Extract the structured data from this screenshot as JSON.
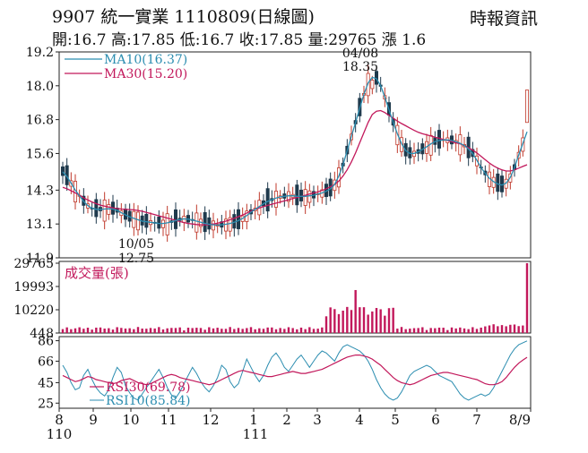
{
  "header": {
    "title": "9907 統一實業 1110809(日線圖)",
    "source": "時報資訊",
    "quote": "開:16.7 高:17.85 低:16.7 收:17.85 量:29765 漲 1.6"
  },
  "colors": {
    "up": "#c0392b",
    "down": "#1f3a4d",
    "ma10": "#2b8db0",
    "ma30": "#c2185b",
    "volume": "#c2185b",
    "rsi10": "#2b8db0",
    "rsi30": "#c2185b"
  },
  "chart_data": [
    {
      "type": "candlestick",
      "panel": "price",
      "ylim": [
        11.9,
        19.2
      ],
      "y_ticks": [
        "19.2",
        "18.0",
        "16.8",
        "15.6",
        "14.3",
        "13.1",
        "11.9"
      ],
      "series": [
        {
          "name": "MA10(16.37)",
          "values": [
            14.95,
            14.78,
            14.55,
            14.3,
            14.1,
            13.9,
            13.75,
            13.66,
            13.62,
            13.62,
            13.63,
            13.64,
            13.63,
            13.58,
            13.5,
            13.42,
            13.35,
            13.3,
            13.25,
            13.2,
            13.18,
            13.16,
            13.14,
            13.12,
            13.12,
            13.14,
            13.18,
            13.22,
            13.26,
            13.28,
            13.27,
            13.24,
            13.2,
            13.16,
            13.12,
            13.09,
            13.07,
            13.06,
            13.07,
            13.09,
            13.12,
            13.16,
            13.22,
            13.3,
            13.4,
            13.52,
            13.62,
            13.72,
            13.82,
            13.9,
            13.96,
            14.02,
            14.06,
            14.08,
            14.1,
            14.1,
            14.08,
            14.08,
            14.08,
            14.1,
            14.12,
            14.16,
            14.2,
            14.26,
            14.35,
            14.5,
            14.8,
            15.2,
            15.7,
            16.2,
            16.7,
            17.2,
            17.7,
            18.1,
            18.3,
            18.25,
            18.0,
            17.6,
            17.15,
            16.7,
            16.3,
            15.95,
            15.7,
            15.6,
            15.6,
            15.66,
            15.74,
            15.84,
            15.94,
            16.02,
            16.06,
            16.08,
            16.08,
            16.06,
            16.02,
            15.96,
            15.88,
            15.76,
            15.6,
            15.36,
            15.1,
            14.9,
            14.72,
            14.6,
            14.52,
            14.48,
            14.55,
            14.75,
            15.1,
            15.55,
            15.95,
            16.37
          ]
        },
        {
          "name": "MA30(15.20)",
          "values": [
            14.4,
            14.35,
            14.28,
            14.2,
            14.12,
            14.03,
            13.95,
            13.88,
            13.82,
            13.77,
            13.73,
            13.7,
            13.67,
            13.65,
            13.63,
            13.62,
            13.61,
            13.6,
            13.58,
            13.55,
            13.51,
            13.47,
            13.43,
            13.39,
            13.35,
            13.31,
            13.27,
            13.23,
            13.19,
            13.15,
            13.12,
            13.1,
            13.08,
            13.07,
            13.07,
            13.08,
            13.1,
            13.13,
            13.16,
            13.2,
            13.25,
            13.3,
            13.36,
            13.42,
            13.49,
            13.56,
            13.62,
            13.67,
            13.72,
            13.76,
            13.8,
            13.84,
            13.88,
            13.92,
            13.96,
            14.0,
            14.04,
            14.08,
            14.12,
            14.16,
            14.2,
            14.24,
            14.29,
            14.35,
            14.42,
            14.5,
            14.62,
            14.8,
            15.02,
            15.3,
            15.62,
            15.98,
            16.34,
            16.7,
            16.98,
            17.1,
            17.12,
            17.05,
            16.95,
            16.85,
            16.75,
            16.66,
            16.58,
            16.5,
            16.42,
            16.35,
            16.3,
            16.26,
            16.22,
            16.18,
            16.14,
            16.1,
            16.06,
            16.02,
            15.98,
            15.94,
            15.88,
            15.8,
            15.72,
            15.62,
            15.5,
            15.38,
            15.26,
            15.16,
            15.08,
            15.02,
            14.98,
            14.98,
            15.02,
            15.08,
            15.14,
            15.2
          ]
        }
      ],
      "annotations": [
        {
          "text": "04/08",
          "x_label": "4"
        },
        {
          "text": "18.35",
          "x_label": "4"
        },
        {
          "text": "10/05",
          "x_label": "10"
        },
        {
          "text": "12.75",
          "x_label": "10"
        }
      ]
    },
    {
      "type": "bar",
      "panel": "volume",
      "ylim": [
        448,
        29765
      ],
      "y_ticks": [
        "29765",
        "19993",
        "10220",
        "448"
      ],
      "legend": "成交量(張)",
      "note": "daily trading volume in lots"
    },
    {
      "type": "line",
      "panel": "rsi",
      "ylim": [
        20,
        90
      ],
      "y_ticks": [
        "86",
        "66",
        "45",
        "25"
      ],
      "series": [
        {
          "name": "RSI30(69.78)",
          "values": [
            52,
            50,
            48,
            46,
            47,
            49,
            51,
            50,
            48,
            47,
            46,
            45,
            44,
            45,
            47,
            48,
            49,
            47,
            45,
            44,
            43,
            44,
            46,
            48,
            50,
            52,
            53,
            52,
            50,
            49,
            48,
            47,
            46,
            45,
            44,
            43,
            44,
            46,
            48,
            50,
            52,
            54,
            56,
            57,
            56,
            55,
            54,
            53,
            52,
            51,
            51,
            52,
            53,
            54,
            55,
            56,
            55,
            54,
            54,
            55,
            56,
            57,
            58,
            60,
            62,
            64,
            66,
            68,
            70,
            71,
            72,
            72,
            71,
            70,
            68,
            65,
            62,
            58,
            54,
            50,
            47,
            45,
            44,
            43,
            44,
            46,
            48,
            50,
            52,
            53,
            54,
            55,
            55,
            54,
            53,
            52,
            51,
            50,
            49,
            48,
            46,
            44,
            43,
            43,
            44,
            46,
            50,
            55,
            60,
            64,
            67,
            69.78
          ]
        },
        {
          "name": "RSI10(85.84)",
          "values": [
            62,
            55,
            45,
            38,
            40,
            52,
            58,
            48,
            40,
            35,
            32,
            38,
            50,
            60,
            55,
            42,
            35,
            30,
            28,
            34,
            40,
            46,
            52,
            58,
            50,
            40,
            33,
            30,
            36,
            44,
            52,
            60,
            54,
            46,
            40,
            36,
            42,
            50,
            62,
            58,
            46,
            40,
            44,
            56,
            68,
            60,
            52,
            46,
            52,
            62,
            70,
            74,
            68,
            60,
            56,
            62,
            68,
            72,
            66,
            60,
            66,
            72,
            76,
            74,
            70,
            66,
            74,
            80,
            82,
            80,
            78,
            76,
            72,
            66,
            58,
            48,
            40,
            34,
            30,
            28,
            30,
            36,
            44,
            52,
            56,
            58,
            60,
            62,
            60,
            56,
            52,
            50,
            48,
            46,
            40,
            34,
            30,
            28,
            30,
            32,
            34,
            32,
            34,
            40,
            48,
            56,
            64,
            72,
            78,
            82,
            84,
            85.84
          ]
        }
      ]
    }
  ],
  "x_axis": {
    "ticks": [
      "8",
      "9",
      "10",
      "11",
      "12",
      "1",
      "2",
      "3",
      "4",
      "5",
      "6",
      "7",
      "8/9"
    ],
    "years": [
      "110",
      "111"
    ]
  }
}
